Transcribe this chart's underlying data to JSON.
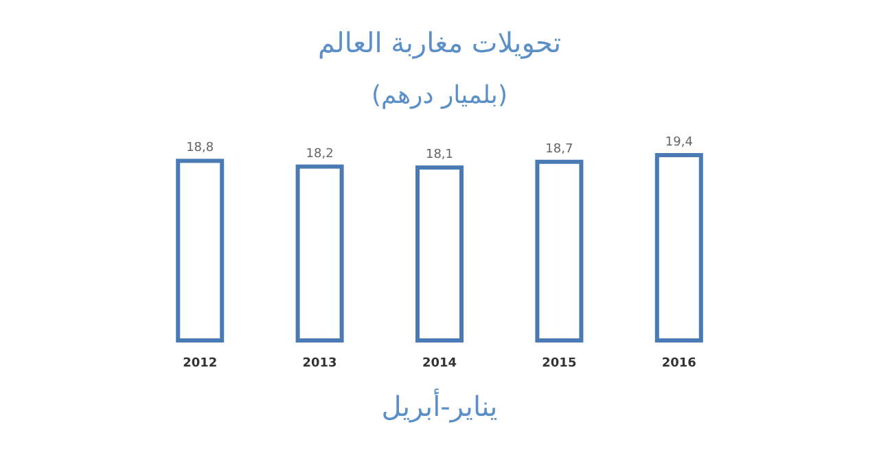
{
  "chart_data": {
    "type": "bar",
    "title": "تحويلات مغاربة العالم",
    "subtitle": "(بلميار درهم)",
    "xlabel": "يناير-أبريل",
    "categories": [
      "2012",
      "2013",
      "2014",
      "2015",
      "2016"
    ],
    "values": [
      18.8,
      18.2,
      18.1,
      18.7,
      19.4
    ],
    "value_labels": [
      "18,8",
      "18,2",
      "18,1",
      "18,7",
      "19,4"
    ],
    "color": "#4a7ab4"
  }
}
